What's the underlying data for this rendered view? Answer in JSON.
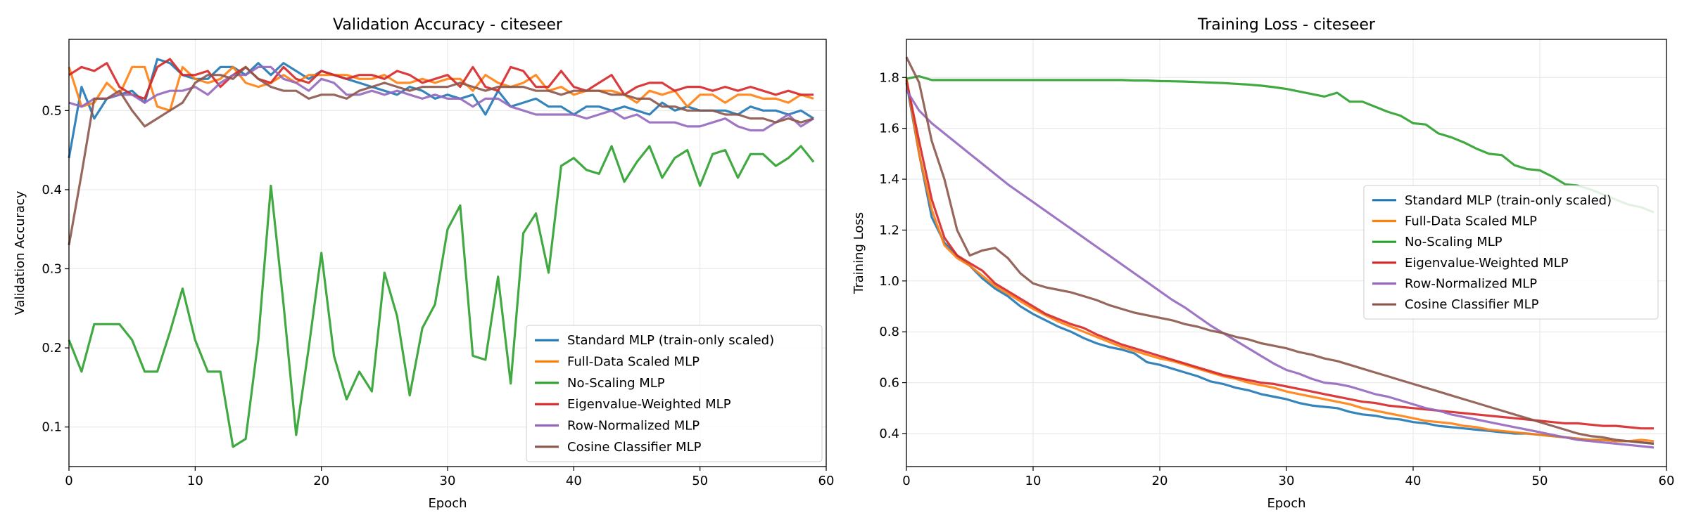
{
  "chart_data": [
    {
      "type": "line",
      "title": "Validation Accuracy - citeseer",
      "xlabel": "Epoch",
      "ylabel": "Validation Accuracy",
      "xlim": [
        0,
        60
      ],
      "ylim": [
        0.05,
        0.59
      ],
      "xticks": [
        0,
        10,
        20,
        30,
        40,
        50,
        60
      ],
      "yticks": [
        0.1,
        0.2,
        0.3,
        0.4,
        0.5
      ],
      "grid": true,
      "legend_position": "lower-right",
      "series": [
        {
          "name": "Standard MLP (train-only scaled)",
          "color": "#1f77b4",
          "values": [
            0.44,
            0.53,
            0.49,
            0.515,
            0.52,
            0.525,
            0.51,
            0.565,
            0.56,
            0.545,
            0.54,
            0.54,
            0.555,
            0.555,
            0.545,
            0.56,
            0.545,
            0.56,
            0.55,
            0.54,
            0.55,
            0.545,
            0.54,
            0.535,
            0.53,
            0.525,
            0.52,
            0.53,
            0.525,
            0.515,
            0.52,
            0.515,
            0.52,
            0.495,
            0.525,
            0.505,
            0.51,
            0.515,
            0.505,
            0.505,
            0.495,
            0.505,
            0.505,
            0.5,
            0.505,
            0.5,
            0.495,
            0.51,
            0.5,
            0.505,
            0.5,
            0.5,
            0.5,
            0.495,
            0.505,
            0.5,
            0.5,
            0.495,
            0.5,
            0.49
          ]
        },
        {
          "name": "Full-Data Scaled MLP",
          "color": "#ff7f0e",
          "values": [
            0.555,
            0.505,
            0.51,
            0.535,
            0.52,
            0.555,
            0.555,
            0.505,
            0.5,
            0.555,
            0.54,
            0.535,
            0.54,
            0.555,
            0.535,
            0.53,
            0.535,
            0.545,
            0.535,
            0.545,
            0.545,
            0.545,
            0.545,
            0.54,
            0.54,
            0.545,
            0.535,
            0.535,
            0.54,
            0.535,
            0.54,
            0.54,
            0.525,
            0.545,
            0.535,
            0.53,
            0.535,
            0.545,
            0.525,
            0.53,
            0.52,
            0.525,
            0.525,
            0.525,
            0.52,
            0.51,
            0.525,
            0.52,
            0.525,
            0.505,
            0.52,
            0.52,
            0.51,
            0.52,
            0.52,
            0.515,
            0.515,
            0.51,
            0.52,
            0.515
          ]
        },
        {
          "name": "No-Scaling MLP",
          "color": "#2ca02c",
          "values": [
            0.21,
            0.17,
            0.23,
            0.23,
            0.23,
            0.21,
            0.17,
            0.17,
            0.22,
            0.275,
            0.21,
            0.17,
            0.17,
            0.075,
            0.085,
            0.21,
            0.405,
            0.255,
            0.09,
            0.2,
            0.32,
            0.19,
            0.135,
            0.17,
            0.145,
            0.295,
            0.24,
            0.14,
            0.225,
            0.255,
            0.35,
            0.38,
            0.19,
            0.185,
            0.29,
            0.155,
            0.345,
            0.37,
            0.295,
            0.43,
            0.44,
            0.425,
            0.42,
            0.455,
            0.41,
            0.435,
            0.455,
            0.415,
            0.44,
            0.45,
            0.405,
            0.445,
            0.45,
            0.415,
            0.445,
            0.445,
            0.43,
            0.44,
            0.455,
            0.435
          ]
        },
        {
          "name": "Eigenvalue-Weighted MLP",
          "color": "#d62728",
          "values": [
            0.545,
            0.555,
            0.55,
            0.56,
            0.53,
            0.52,
            0.515,
            0.555,
            0.565,
            0.545,
            0.545,
            0.55,
            0.53,
            0.545,
            0.555,
            0.54,
            0.535,
            0.555,
            0.54,
            0.535,
            0.55,
            0.545,
            0.54,
            0.545,
            0.545,
            0.54,
            0.55,
            0.545,
            0.535,
            0.54,
            0.545,
            0.53,
            0.555,
            0.53,
            0.525,
            0.555,
            0.55,
            0.53,
            0.53,
            0.55,
            0.53,
            0.525,
            0.535,
            0.545,
            0.52,
            0.53,
            0.535,
            0.535,
            0.525,
            0.53,
            0.53,
            0.525,
            0.53,
            0.525,
            0.53,
            0.525,
            0.52,
            0.525,
            0.52,
            0.52
          ]
        },
        {
          "name": "Row-Normalized MLP",
          "color": "#9467bd",
          "values": [
            0.51,
            0.505,
            0.515,
            0.515,
            0.52,
            0.52,
            0.51,
            0.52,
            0.525,
            0.525,
            0.53,
            0.52,
            0.535,
            0.545,
            0.545,
            0.555,
            0.555,
            0.54,
            0.535,
            0.525,
            0.54,
            0.535,
            0.52,
            0.52,
            0.525,
            0.52,
            0.525,
            0.52,
            0.515,
            0.52,
            0.515,
            0.515,
            0.505,
            0.515,
            0.515,
            0.505,
            0.5,
            0.495,
            0.495,
            0.495,
            0.495,
            0.49,
            0.495,
            0.5,
            0.49,
            0.495,
            0.485,
            0.485,
            0.485,
            0.48,
            0.48,
            0.485,
            0.49,
            0.48,
            0.475,
            0.475,
            0.485,
            0.495,
            0.48,
            0.49
          ]
        },
        {
          "name": "Cosine Classifier MLP",
          "color": "#8c564b",
          "values": [
            0.33,
            0.42,
            0.515,
            0.515,
            0.525,
            0.5,
            0.48,
            0.49,
            0.5,
            0.51,
            0.535,
            0.545,
            0.545,
            0.54,
            0.555,
            0.54,
            0.53,
            0.525,
            0.525,
            0.515,
            0.52,
            0.52,
            0.515,
            0.525,
            0.53,
            0.535,
            0.53,
            0.525,
            0.53,
            0.53,
            0.53,
            0.535,
            0.53,
            0.525,
            0.53,
            0.53,
            0.53,
            0.525,
            0.525,
            0.52,
            0.525,
            0.525,
            0.525,
            0.52,
            0.52,
            0.515,
            0.515,
            0.505,
            0.505,
            0.5,
            0.5,
            0.5,
            0.495,
            0.495,
            0.49,
            0.49,
            0.485,
            0.49,
            0.485,
            0.49
          ]
        }
      ]
    },
    {
      "type": "line",
      "title": "Training Loss - citeseer",
      "xlabel": "Epoch",
      "ylabel": "Training Loss",
      "xlim": [
        0,
        60
      ],
      "ylim": [
        0.27,
        1.95
      ],
      "xticks": [
        0,
        10,
        20,
        30,
        40,
        50,
        60
      ],
      "yticks": [
        0.4,
        0.6,
        0.8,
        1.0,
        1.2,
        1.4,
        1.6,
        1.8
      ],
      "grid": true,
      "legend_position": "center-right",
      "series": [
        {
          "name": "Standard MLP (train-only scaled)",
          "color": "#1f77b4",
          "values": [
            1.78,
            1.5,
            1.25,
            1.15,
            1.1,
            1.06,
            1.01,
            0.97,
            0.94,
            0.9,
            0.87,
            0.845,
            0.82,
            0.8,
            0.775,
            0.755,
            0.74,
            0.73,
            0.715,
            0.68,
            0.67,
            0.655,
            0.64,
            0.625,
            0.605,
            0.595,
            0.58,
            0.57,
            0.555,
            0.545,
            0.535,
            0.52,
            0.51,
            0.505,
            0.5,
            0.485,
            0.475,
            0.47,
            0.46,
            0.455,
            0.445,
            0.44,
            0.43,
            0.425,
            0.42,
            0.415,
            0.41,
            0.405,
            0.4,
            0.4,
            0.395,
            0.39,
            0.385,
            0.38,
            0.375,
            0.375,
            0.37,
            0.37,
            0.365,
            0.36
          ]
        },
        {
          "name": "Full-Data Scaled MLP",
          "color": "#ff7f0e",
          "values": [
            1.8,
            1.5,
            1.28,
            1.14,
            1.09,
            1.06,
            1.02,
            0.98,
            0.95,
            0.92,
            0.89,
            0.865,
            0.84,
            0.82,
            0.8,
            0.78,
            0.76,
            0.74,
            0.725,
            0.71,
            0.695,
            0.685,
            0.67,
            0.655,
            0.64,
            0.625,
            0.615,
            0.6,
            0.59,
            0.58,
            0.565,
            0.555,
            0.545,
            0.535,
            0.525,
            0.515,
            0.5,
            0.49,
            0.48,
            0.47,
            0.46,
            0.45,
            0.445,
            0.44,
            0.43,
            0.425,
            0.415,
            0.41,
            0.405,
            0.4,
            0.395,
            0.39,
            0.385,
            0.38,
            0.375,
            0.375,
            0.37,
            0.37,
            0.375,
            0.37
          ]
        },
        {
          "name": "No-Scaling MLP",
          "color": "#2ca02c",
          "values": [
            1.795,
            1.805,
            1.79,
            1.79,
            1.79,
            1.79,
            1.79,
            1.79,
            1.79,
            1.79,
            1.79,
            1.79,
            1.79,
            1.79,
            1.79,
            1.79,
            1.79,
            1.79,
            1.788,
            1.788,
            1.786,
            1.785,
            1.784,
            1.782,
            1.78,
            1.778,
            1.775,
            1.772,
            1.768,
            1.762,
            1.755,
            1.745,
            1.735,
            1.725,
            1.74,
            1.705,
            1.705,
            1.685,
            1.665,
            1.65,
            1.62,
            1.615,
            1.58,
            1.565,
            1.545,
            1.52,
            1.5,
            1.495,
            1.455,
            1.44,
            1.435,
            1.41,
            1.38,
            1.375,
            1.36,
            1.34,
            1.32,
            1.3,
            1.29,
            1.27
          ]
        },
        {
          "name": "Eigenvalue-Weighted MLP",
          "color": "#d62728",
          "values": [
            1.79,
            1.55,
            1.32,
            1.17,
            1.1,
            1.07,
            1.04,
            0.99,
            0.96,
            0.93,
            0.9,
            0.87,
            0.85,
            0.83,
            0.815,
            0.79,
            0.77,
            0.75,
            0.735,
            0.72,
            0.705,
            0.69,
            0.675,
            0.66,
            0.645,
            0.63,
            0.62,
            0.61,
            0.6,
            0.595,
            0.585,
            0.575,
            0.565,
            0.555,
            0.545,
            0.535,
            0.525,
            0.52,
            0.51,
            0.505,
            0.5,
            0.495,
            0.49,
            0.485,
            0.48,
            0.475,
            0.47,
            0.465,
            0.46,
            0.455,
            0.45,
            0.445,
            0.44,
            0.44,
            0.435,
            0.43,
            0.43,
            0.425,
            0.42,
            0.42
          ]
        },
        {
          "name": "Row-Normalized MLP",
          "color": "#9467bd",
          "values": [
            1.75,
            1.67,
            1.62,
            1.58,
            1.54,
            1.5,
            1.46,
            1.42,
            1.38,
            1.345,
            1.31,
            1.275,
            1.24,
            1.205,
            1.17,
            1.135,
            1.1,
            1.065,
            1.03,
            0.995,
            0.96,
            0.925,
            0.895,
            0.86,
            0.825,
            0.795,
            0.765,
            0.735,
            0.705,
            0.675,
            0.65,
            0.635,
            0.615,
            0.6,
            0.595,
            0.585,
            0.57,
            0.555,
            0.545,
            0.53,
            0.515,
            0.5,
            0.49,
            0.475,
            0.465,
            0.455,
            0.445,
            0.435,
            0.425,
            0.415,
            0.405,
            0.395,
            0.385,
            0.375,
            0.37,
            0.365,
            0.36,
            0.355,
            0.35,
            0.345
          ]
        },
        {
          "name": "Cosine Classifier MLP",
          "color": "#8c564b",
          "values": [
            1.88,
            1.78,
            1.55,
            1.4,
            1.2,
            1.1,
            1.12,
            1.13,
            1.09,
            1.03,
            0.99,
            0.975,
            0.965,
            0.955,
            0.94,
            0.925,
            0.905,
            0.89,
            0.875,
            0.865,
            0.855,
            0.845,
            0.83,
            0.82,
            0.805,
            0.795,
            0.78,
            0.77,
            0.755,
            0.745,
            0.735,
            0.72,
            0.71,
            0.695,
            0.685,
            0.67,
            0.655,
            0.64,
            0.625,
            0.61,
            0.595,
            0.58,
            0.565,
            0.55,
            0.535,
            0.52,
            0.505,
            0.49,
            0.475,
            0.46,
            0.445,
            0.43,
            0.415,
            0.4,
            0.39,
            0.385,
            0.375,
            0.37,
            0.365,
            0.36
          ]
        }
      ]
    }
  ]
}
